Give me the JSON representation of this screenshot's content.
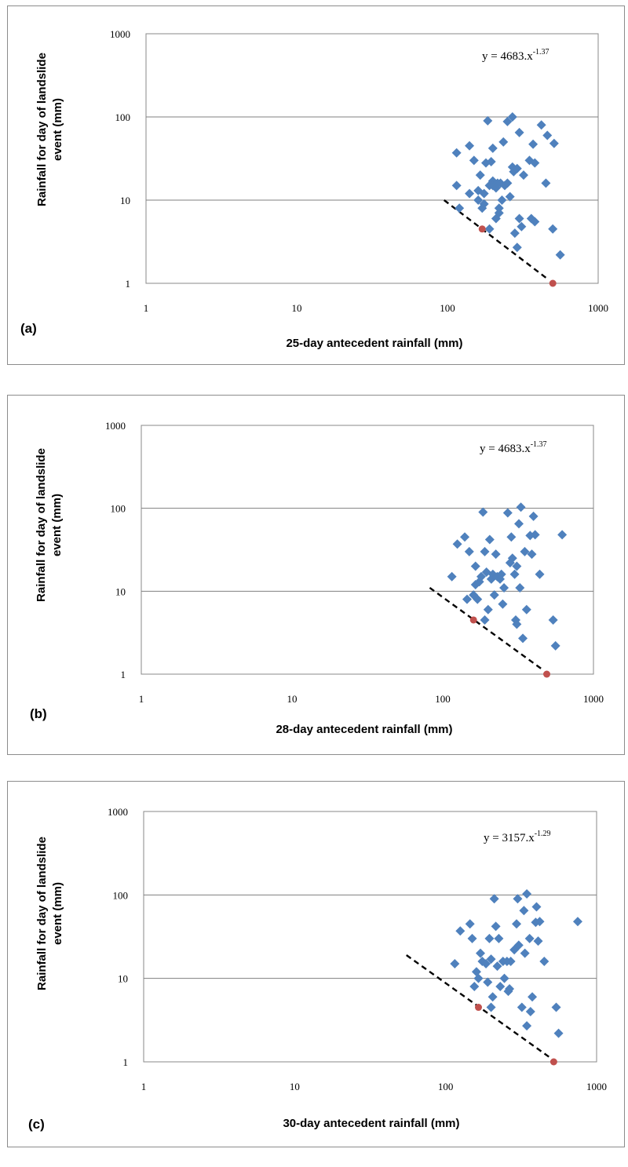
{
  "chart_data": [
    {
      "type": "scatter",
      "panel_label": "(a)",
      "xlabel": "25-day antecedent rainfall (mm)",
      "ylabel": "Rainfall for day of landslide event (mm)",
      "ylabel_lines": [
        "Rainfall for day of landslide",
        "event (mm)"
      ],
      "x_scale": "log",
      "y_scale": "log",
      "xlim": [
        1,
        1000
      ],
      "ylim": [
        1,
        1000
      ],
      "x_ticks": [
        "1",
        "10",
        "100",
        "1000"
      ],
      "y_ticks": [
        "1",
        "10",
        "100",
        "1000"
      ],
      "grid": "horizontal",
      "equation": {
        "base": "y = 4683.x",
        "exponent": "-1.37"
      },
      "colors": {
        "points": "#4f81bd",
        "highlight": "#c0504d",
        "threshold": "#000000",
        "grid": "#7f7f7f"
      },
      "series": [
        {
          "values": [
            [
              115,
              37
            ],
            [
              115,
              15
            ],
            [
              120,
              8
            ],
            [
              140,
              45
            ],
            [
              140,
              12
            ],
            [
              150,
              30
            ],
            [
              160,
              10
            ],
            [
              160,
              13
            ],
            [
              165,
              20
            ],
            [
              170,
              8
            ],
            [
              175,
              9
            ],
            [
              175,
              12
            ],
            [
              180,
              28
            ],
            [
              185,
              90
            ],
            [
              190,
              15
            ],
            [
              190,
              4.5
            ],
            [
              195,
              29
            ],
            [
              200,
              17
            ],
            [
              200,
              15
            ],
            [
              200,
              42
            ],
            [
              210,
              14
            ],
            [
              210,
              6
            ],
            [
              215,
              16
            ],
            [
              220,
              8
            ],
            [
              220,
              7
            ],
            [
              225,
              16
            ],
            [
              230,
              10
            ],
            [
              235,
              50
            ],
            [
              240,
              15
            ],
            [
              250,
              16
            ],
            [
              250,
              88
            ],
            [
              260,
              11
            ],
            [
              270,
              100
            ],
            [
              270,
              25
            ],
            [
              275,
              22
            ],
            [
              280,
              4
            ],
            [
              290,
              24
            ],
            [
              290,
              2.7
            ],
            [
              300,
              6
            ],
            [
              300,
              65
            ],
            [
              310,
              4.8
            ],
            [
              320,
              20
            ],
            [
              350,
              30
            ],
            [
              360,
              6
            ],
            [
              370,
              47
            ],
            [
              380,
              28
            ],
            [
              380,
              5.5
            ],
            [
              420,
              80
            ],
            [
              450,
              16
            ],
            [
              460,
              60
            ],
            [
              500,
              4.5
            ],
            [
              510,
              48
            ],
            [
              560,
              2.2
            ]
          ]
        },
        {
          "values": [
            [
              170,
              4.5
            ],
            [
              500,
              1
            ]
          ]
        }
      ],
      "threshold_line": [
        [
          95,
          10
        ],
        [
          470,
          1.1
        ]
      ]
    },
    {
      "type": "scatter",
      "panel_label": "(b)",
      "xlabel": "28-day antecedent rainfall (mm)",
      "ylabel": "Rainfall for day of landslide event (mm)",
      "ylabel_lines": [
        "Rainfall for day of landslide",
        "event (mm)"
      ],
      "x_scale": "log",
      "y_scale": "log",
      "xlim": [
        1,
        1000
      ],
      "ylim": [
        1,
        1000
      ],
      "x_ticks": [
        "1",
        "10",
        "100",
        "1000"
      ],
      "y_ticks": [
        "1",
        "10",
        "100",
        "1000"
      ],
      "grid": "horizontal",
      "equation": {
        "base": "y = 4683.x",
        "exponent": "-1.37"
      },
      "colors": {
        "points": "#4f81bd",
        "highlight": "#c0504d",
        "threshold": "#000000",
        "grid": "#7f7f7f"
      },
      "series": [
        {
          "values": [
            [
              115,
              15
            ],
            [
              125,
              37
            ],
            [
              140,
              45
            ],
            [
              145,
              8
            ],
            [
              150,
              30
            ],
            [
              160,
              9
            ],
            [
              165,
              20
            ],
            [
              165,
              12
            ],
            [
              170,
              8
            ],
            [
              175,
              13
            ],
            [
              180,
              15
            ],
            [
              185,
              90
            ],
            [
              190,
              4.5
            ],
            [
              190,
              30
            ],
            [
              195,
              17
            ],
            [
              200,
              6
            ],
            [
              205,
              42
            ],
            [
              210,
              14
            ],
            [
              215,
              16
            ],
            [
              220,
              9
            ],
            [
              225,
              28
            ],
            [
              230,
              15
            ],
            [
              240,
              14
            ],
            [
              245,
              16
            ],
            [
              250,
              7
            ],
            [
              255,
              11
            ],
            [
              270,
              88
            ],
            [
              280,
              22
            ],
            [
              285,
              45
            ],
            [
              290,
              25
            ],
            [
              300,
              16
            ],
            [
              305,
              4.5
            ],
            [
              310,
              4
            ],
            [
              310,
              20
            ],
            [
              320,
              65
            ],
            [
              325,
              11
            ],
            [
              330,
              103
            ],
            [
              340,
              2.7
            ],
            [
              350,
              30
            ],
            [
              360,
              6
            ],
            [
              380,
              47
            ],
            [
              390,
              28
            ],
            [
              400,
              80
            ],
            [
              410,
              48
            ],
            [
              440,
              16
            ],
            [
              540,
              4.5
            ],
            [
              560,
              2.2
            ],
            [
              620,
              48
            ]
          ]
        },
        {
          "values": [
            [
              160,
              4.5
            ],
            [
              490,
              1
            ]
          ]
        }
      ],
      "threshold_line": [
        [
          82,
          11
        ],
        [
          470,
          1.1
        ]
      ]
    },
    {
      "type": "scatter",
      "panel_label": "(c)",
      "xlabel": "30-day antecedent rainfall (mm)",
      "ylabel": "Rainfall for day of landslide event (mm)",
      "ylabel_lines": [
        "Rainfall for day of landslide",
        "event (mm)"
      ],
      "x_scale": "log",
      "y_scale": "log",
      "xlim": [
        1,
        1000
      ],
      "ylim": [
        1,
        1000
      ],
      "x_ticks": [
        "1",
        "10",
        "100",
        "1000"
      ],
      "y_ticks": [
        "1",
        "10",
        "100",
        "1000"
      ],
      "grid": "horizontal",
      "equation": {
        "base": "y = 3157.x",
        "exponent": "-1.29"
      },
      "colors": {
        "points": "#4f81bd",
        "highlight": "#c0504d",
        "threshold": "#000000",
        "grid": "#7f7f7f"
      },
      "series": [
        {
          "values": [
            [
              115,
              15
            ],
            [
              125,
              37
            ],
            [
              145,
              45
            ],
            [
              150,
              30
            ],
            [
              155,
              8
            ],
            [
              160,
              12
            ],
            [
              165,
              10
            ],
            [
              170,
              20
            ],
            [
              175,
              16
            ],
            [
              185,
              15
            ],
            [
              190,
              9
            ],
            [
              195,
              30
            ],
            [
              200,
              4.5
            ],
            [
              200,
              17
            ],
            [
              205,
              6
            ],
            [
              210,
              90
            ],
            [
              215,
              42
            ],
            [
              220,
              14
            ],
            [
              225,
              30
            ],
            [
              230,
              8
            ],
            [
              240,
              16
            ],
            [
              245,
              10
            ],
            [
              255,
              16
            ],
            [
              260,
              7
            ],
            [
              265,
              7.5
            ],
            [
              270,
              16
            ],
            [
              285,
              22
            ],
            [
              295,
              45
            ],
            [
              300,
              90
            ],
            [
              305,
              25
            ],
            [
              320,
              4.5
            ],
            [
              330,
              65
            ],
            [
              335,
              20
            ],
            [
              345,
              103
            ],
            [
              345,
              2.7
            ],
            [
              360,
              30
            ],
            [
              365,
              4
            ],
            [
              375,
              6
            ],
            [
              395,
              47
            ],
            [
              400,
              72
            ],
            [
              410,
              28
            ],
            [
              420,
              48
            ],
            [
              450,
              16
            ],
            [
              540,
              4.5
            ],
            [
              560,
              2.2
            ],
            [
              750,
              48
            ]
          ]
        },
        {
          "values": [
            [
              165,
              4.5
            ],
            [
              520,
              1
            ]
          ]
        }
      ],
      "threshold_line": [
        [
          55,
          19
        ],
        [
          500,
          1.1
        ]
      ]
    }
  ]
}
